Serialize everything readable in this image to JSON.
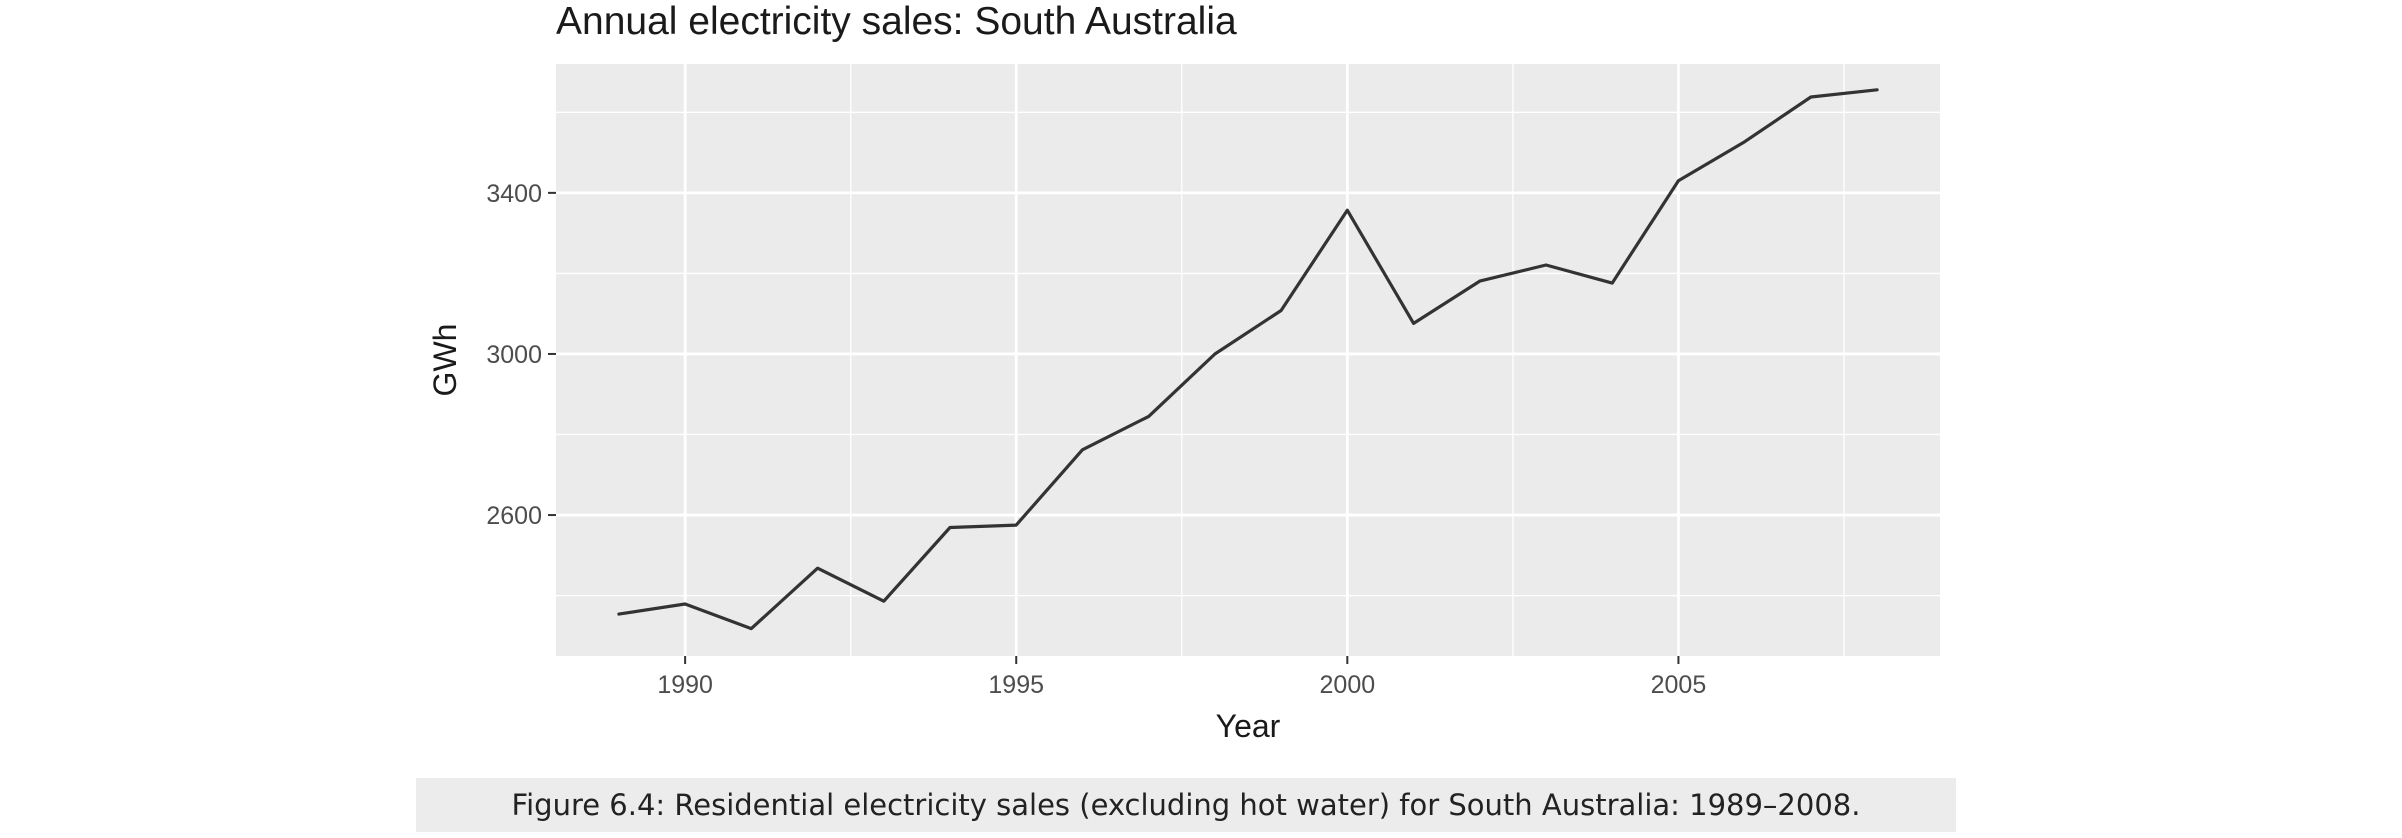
{
  "chart_data": {
    "type": "line",
    "title": "Annual electricity sales: South Australia",
    "xlabel": "Year",
    "ylabel": "GWh",
    "x": [
      1989,
      1990,
      1991,
      1992,
      1993,
      1994,
      1995,
      1996,
      1997,
      1998,
      1999,
      2000,
      2001,
      2002,
      2003,
      2004,
      2005,
      2006,
      2007,
      2008
    ],
    "series": [
      {
        "values": [
          2354,
          2379,
          2318,
          2468,
          2386,
          2569,
          2575,
          2762,
          2845,
          3000,
          3108,
          3357,
          3076,
          3181,
          3221,
          3176,
          3430,
          3527,
          3638,
          3656
        ]
      }
    ],
    "xticks": [
      "1990",
      "1995",
      "2000",
      "2005"
    ],
    "yticks": [
      "2600",
      "3000",
      "3400"
    ],
    "ytick_values": [
      2600,
      3000,
      3400
    ],
    "xtick_values": [
      1990,
      1995,
      2000,
      2005
    ],
    "xlim": [
      1988.05,
      2008.95
    ],
    "ylim": [
      2250,
      3720
    ],
    "grid": true,
    "legend": "none",
    "colors": {
      "panel": "#ebebeb",
      "grid_major": "#ffffff",
      "line": "#333333",
      "tick_text": "#4d4d4d"
    }
  },
  "caption": {
    "text": "Figure 6.4: Residential electricity sales (excluding hot water) for South Australia: 1989–2008."
  }
}
